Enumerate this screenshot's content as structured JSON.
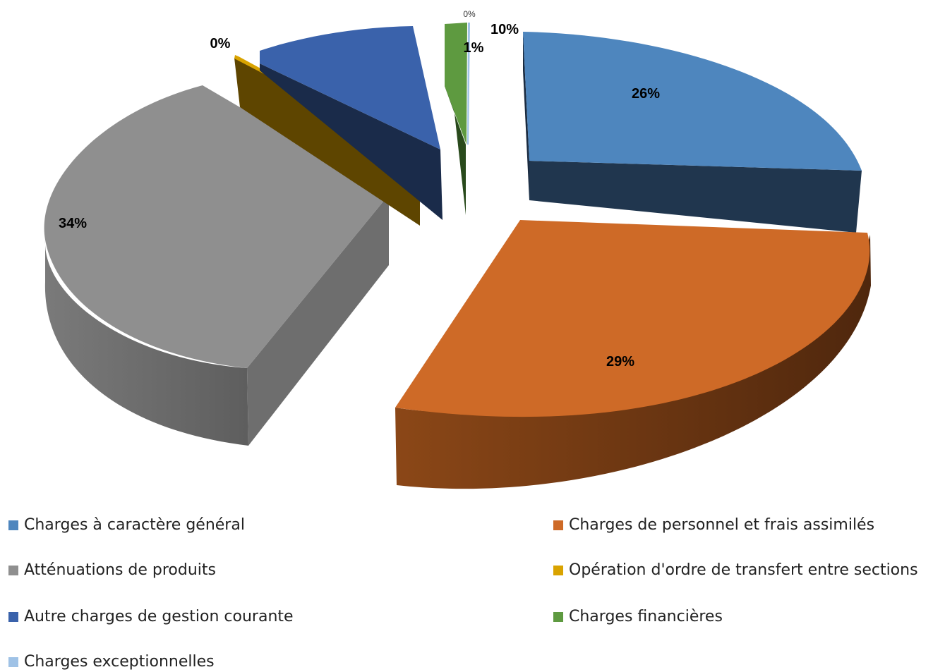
{
  "chart_data": {
    "type": "pie",
    "title": "",
    "style": "3d-exploded",
    "slices": [
      {
        "name": "Charges à caractère général",
        "label": "26%",
        "value": 26,
        "color": "#4E86BE"
      },
      {
        "name": "Charges de personnel et frais assimilés",
        "label": "29%",
        "value": 29,
        "color": "#CE6A27"
      },
      {
        "name": "Atténuations de produits",
        "label": "34%",
        "value": 34,
        "color": "#8F8F8F"
      },
      {
        "name": "Opération d'ordre de transfert entre sections",
        "label": "0%",
        "value": 0.3,
        "color": "#D9A300"
      },
      {
        "name": "Autre charges de gestion courante",
        "label": "10%",
        "value": 10,
        "color": "#3A62AB"
      },
      {
        "name": "Charges financières",
        "label": "1%",
        "value": 1,
        "color": "#5E9A40"
      },
      {
        "name": "Charges exceptionnelles",
        "label": "0%",
        "value": 0.1,
        "color": "#9FC2E6"
      }
    ],
    "legend_position": "bottom"
  }
}
